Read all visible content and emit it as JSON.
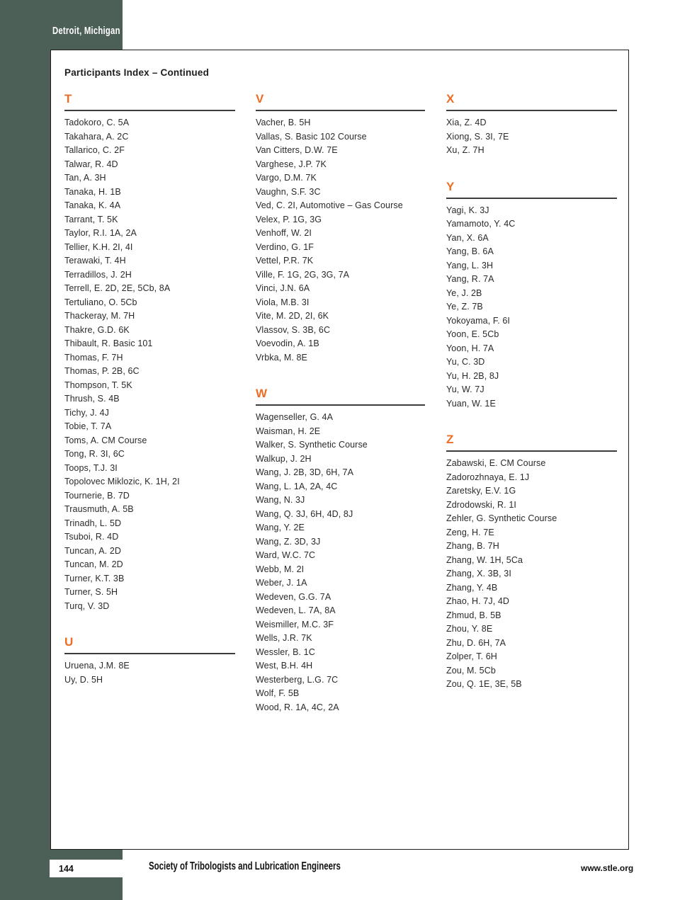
{
  "colors": {
    "sidebar_green": "#4d6057",
    "accent_orange": "#ed6d23"
  },
  "sidebar": {
    "location_label": "Detroit, Michigan"
  },
  "page": {
    "heading": "Participants Index – Continued",
    "page_number": "144",
    "footer_org": "Society of Tribologists and Lubrication Engineers",
    "footer_url": "www.stle.org"
  },
  "columns": [
    {
      "sections": [
        {
          "letter": "T",
          "entries": [
            "Tadokoro, C. 5A",
            "Takahara, A. 2C",
            "Tallarico, C. 2F",
            "Talwar, R. 4D",
            "Tan, A. 3H",
            "Tanaka, H. 1B",
            "Tanaka, K. 4A",
            "Tarrant, T. 5K",
            "Taylor, R.I. 1A, 2A",
            "Tellier, K.H. 2I, 4I",
            "Terawaki, T. 4H",
            "Terradillos, J. 2H",
            "Terrell, E. 2D, 2E, 5Cb, 8A",
            "Tertuliano, O. 5Cb",
            "Thackeray, M. 7H",
            "Thakre, G.D. 6K",
            "Thibault, R. Basic 101",
            "Thomas, F. 7H",
            "Thomas, P. 2B, 6C",
            "Thompson, T. 5K",
            "Thrush, S. 4B",
            "Tichy, J. 4J",
            "Tobie, T. 7A",
            "Toms, A. CM Course",
            "Tong, R. 3I, 6C",
            "Toops, T.J. 3I",
            "Topolovec Miklozic, K. 1H, 2I",
            "Tournerie, B. 7D",
            "Trausmuth, A. 5B",
            "Trinadh, L. 5D",
            "Tsuboi, R. 4D",
            "Tuncan, A. 2D",
            "Tuncan, M. 2D",
            "Turner, K.T. 3B",
            "Turner, S. 5H",
            "Turq, V. 3D"
          ]
        },
        {
          "letter": "U",
          "entries": [
            "Uruena, J.M. 8E",
            "Uy, D. 5H"
          ]
        }
      ]
    },
    {
      "sections": [
        {
          "letter": "V",
          "entries": [
            "Vacher, B. 5H",
            "Vallas, S. Basic 102 Course",
            "Van Citters, D.W. 7E",
            "Varghese, J.P. 7K",
            "Vargo, D.M. 7K",
            "Vaughn, S.F. 3C",
            "Ved, C. 2I, Automotive – Gas Course",
            "Velex, P. 1G, 3G",
            "Venhoff, W. 2I",
            "Verdino, G. 1F",
            "Vettel, P.R. 7K",
            "Ville, F. 1G, 2G, 3G, 7A",
            "Vinci, J.N. 6A",
            "Viola, M.B. 3I",
            "Vite, M. 2D, 2I, 6K",
            "Vlassov, S. 3B, 6C",
            "Voevodin, A. 1B",
            "Vrbka, M. 8E"
          ]
        },
        {
          "letter": "W",
          "entries": [
            "Wagenseller, G. 4A",
            "Waisman, H. 2E",
            "Walker, S. Synthetic Course",
            "Walkup, J. 2H",
            "Wang, J. 2B, 3D, 6H, 7A",
            "Wang, L. 1A, 2A, 4C",
            "Wang, N. 3J",
            "Wang, Q. 3J, 6H, 4D, 8J",
            "Wang, Y. 2E",
            "Wang, Z. 3D, 3J",
            "Ward, W.C. 7C",
            "Webb, M. 2I",
            "Weber, J. 1A",
            "Wedeven, G.G. 7A",
            "Wedeven, L. 7A, 8A",
            "Weismiller, M.C. 3F",
            "Wells, J.R. 7K",
            "Wessler, B. 1C",
            "West, B.H. 4H",
            "Westerberg, L.G. 7C",
            "Wolf, F. 5B",
            "Wood, R. 1A, 4C, 2A"
          ]
        }
      ]
    },
    {
      "sections": [
        {
          "letter": "X",
          "entries": [
            "Xia, Z. 4D",
            "Xiong, S. 3I, 7E",
            "Xu, Z. 7H"
          ]
        },
        {
          "letter": "Y",
          "entries": [
            "Yagi, K. 3J",
            "Yamamoto, Y. 4C",
            "Yan, X. 6A",
            "Yang, B. 6A",
            "Yang, L. 3H",
            "Yang, R. 7A",
            "Ye, J. 2B",
            "Ye, Z. 7B",
            "Yokoyama, F. 6I",
            "Yoon, E. 5Cb",
            "Yoon, H. 7A",
            "Yu, C. 3D",
            "Yu, H. 2B, 8J",
            "Yu, W. 7J",
            "Yuan, W. 1E"
          ]
        },
        {
          "letter": "Z",
          "entries": [
            "Zabawski, E. CM Course",
            "Zadorozhnaya, E. 1J",
            "Zaretsky, E.V. 1G",
            "Zdrodowski, R. 1I",
            "Zehler, G. Synthetic Course",
            "Zeng, H. 7E",
            "Zhang, B. 7H",
            "Zhang, W. 1H, 5Ca",
            "Zhang, X. 3B, 3I",
            "Zhang, Y. 4B",
            "Zhao, H. 7J, 4D",
            "Zhmud, B. 5B",
            "Zhou, Y. 8E",
            "Zhu, D. 6H, 7A",
            "Zolper, T. 6H",
            "Zou, M. 5Cb",
            "Zou, Q. 1E, 3E, 5B"
          ]
        }
      ]
    }
  ]
}
